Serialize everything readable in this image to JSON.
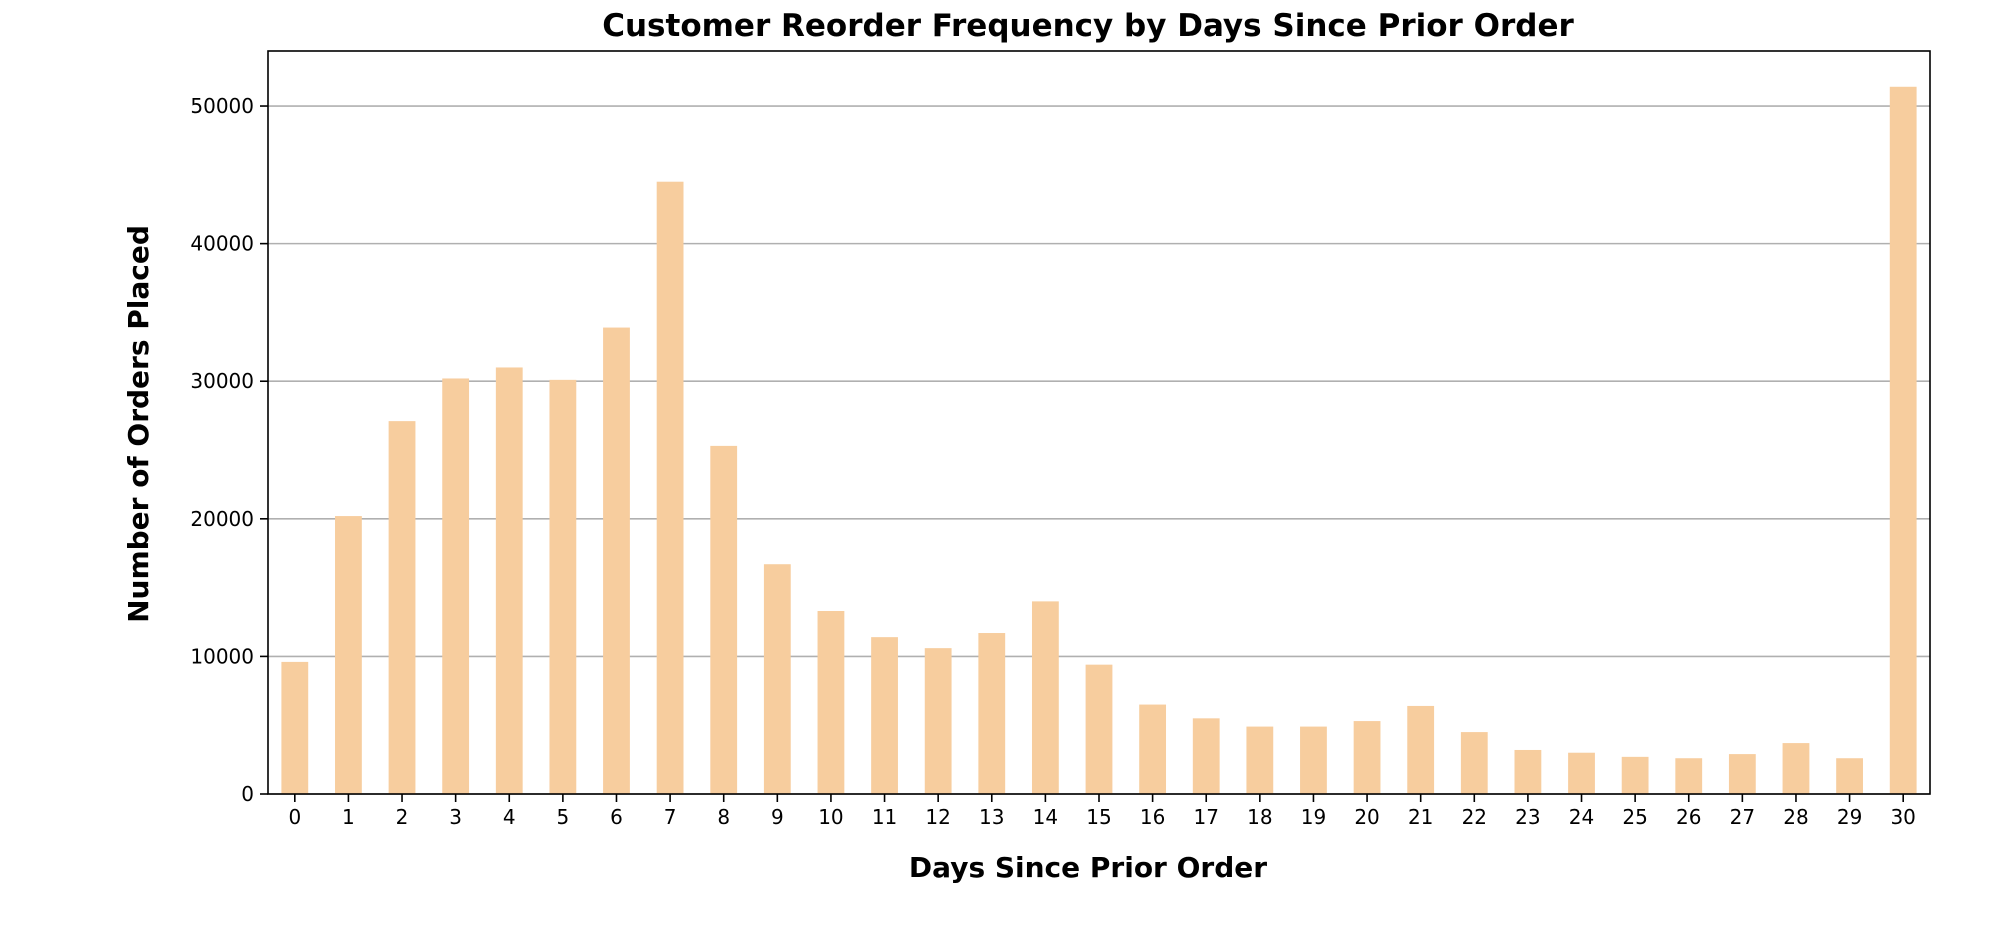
{
  "chart_data": {
    "type": "bar",
    "title": "Customer Reorder Frequency by Days Since Prior Order",
    "xlabel": "Days Since Prior Order",
    "ylabel": "Number of Orders Placed",
    "categories": [
      "0",
      "1",
      "2",
      "3",
      "4",
      "5",
      "6",
      "7",
      "8",
      "9",
      "10",
      "11",
      "12",
      "13",
      "14",
      "15",
      "16",
      "17",
      "18",
      "19",
      "20",
      "21",
      "22",
      "23",
      "24",
      "25",
      "26",
      "27",
      "28",
      "29",
      "30"
    ],
    "values": [
      9600,
      20200,
      27100,
      30200,
      31000,
      30100,
      33900,
      44500,
      25300,
      16700,
      13300,
      11400,
      10600,
      11700,
      14000,
      9400,
      6500,
      5500,
      4900,
      4900,
      5300,
      6400,
      4500,
      3200,
      3000,
      2700,
      2600,
      2900,
      3700,
      2600,
      51400
    ],
    "ylim": [
      0,
      54000
    ],
    "yticks": [
      0,
      10000,
      20000,
      30000,
      40000,
      50000
    ],
    "grid": "horizontal",
    "bar_color": "#f7cd9e",
    "legend": "none"
  }
}
